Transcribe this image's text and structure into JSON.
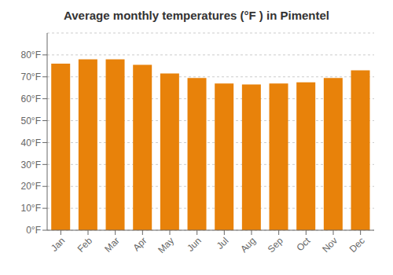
{
  "chart_data": {
    "type": "bar",
    "title": "Average monthly temperatures (°F ) in Pimentel",
    "categories": [
      "Jan",
      "Feb",
      "Mar",
      "Apr",
      "May",
      "Jun",
      "Jul",
      "Aug",
      "Sep",
      "Oct",
      "Nov",
      "Dec"
    ],
    "values": [
      76,
      78,
      78,
      75.5,
      71.5,
      69.5,
      67,
      66.5,
      67,
      67.5,
      69.5,
      73
    ],
    "color": "#E8820A",
    "ylim": [
      0,
      90
    ],
    "yticks": [
      {
        "value": 0,
        "label": "0°F"
      },
      {
        "value": 10,
        "label": "10°F"
      },
      {
        "value": 20,
        "label": "20°F"
      },
      {
        "value": 30,
        "label": "30°F"
      },
      {
        "value": 40,
        "label": "40°F"
      },
      {
        "value": 50,
        "label": "50°F"
      },
      {
        "value": 60,
        "label": "60°F"
      },
      {
        "value": 70,
        "label": "70°F"
      },
      {
        "value": 80,
        "label": "80°F"
      }
    ],
    "grid": true
  }
}
